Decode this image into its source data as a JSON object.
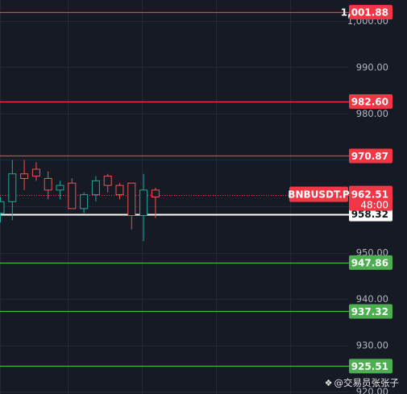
{
  "chart_data": {
    "type": "candlestick",
    "symbol": "BNBUSDT.P",
    "last_price": "962.51",
    "countdown": "48:00",
    "y_ticks": [
      "1,000.00",
      "990.00",
      "980.00",
      "970.00",
      "960.00",
      "950.00",
      "940.00",
      "930.00",
      "920.00"
    ],
    "ylim": [
      919.5,
      1004.5
    ],
    "candles": [
      {
        "o": 958.5,
        "h": 962.0,
        "l": 956.5,
        "c": 961.0
      },
      {
        "o": 961.0,
        "h": 970.0,
        "l": 957.0,
        "c": 967.0
      },
      {
        "o": 967.0,
        "h": 970.0,
        "l": 963.5,
        "c": 966.0
      },
      {
        "o": 968.0,
        "h": 969.5,
        "l": 965.5,
        "c": 966.5
      },
      {
        "o": 966.0,
        "h": 967.5,
        "l": 961.5,
        "c": 963.5
      },
      {
        "o": 963.5,
        "h": 965.5,
        "l": 961.5,
        "c": 964.5
      },
      {
        "o": 965.0,
        "h": 966.0,
        "l": 959.5,
        "c": 959.5
      },
      {
        "o": 959.5,
        "h": 963.0,
        "l": 958.5,
        "c": 962.5
      },
      {
        "o": 962.5,
        "h": 966.5,
        "l": 961.0,
        "c": 965.5
      },
      {
        "o": 966.5,
        "h": 967.0,
        "l": 963.0,
        "c": 964.5
      },
      {
        "o": 964.5,
        "h": 965.0,
        "l": 961.5,
        "c": 962.5
      },
      {
        "o": 965.0,
        "h": 965.0,
        "l": 955.0,
        "c": 958.0
      },
      {
        "o": 958.0,
        "h": 967.0,
        "l": 952.5,
        "c": 963.5
      },
      {
        "o": 963.5,
        "h": 964.0,
        "l": 957.5,
        "c": 962.0
      }
    ],
    "levels": [
      {
        "value": 1001.88,
        "label": "1,001.88",
        "color": "#f23645",
        "kind": "resistance"
      },
      {
        "value": 982.6,
        "label": "982.60",
        "color": "#f23645",
        "kind": "resistance"
      },
      {
        "value": 970.87,
        "label": "970.87",
        "color": "#f23645",
        "kind": "resistance"
      },
      {
        "value": 958.32,
        "label": "958.32",
        "color": "#ffffff",
        "kind": "pivot"
      },
      {
        "value": 947.86,
        "label": "947.86",
        "color": "#4caf50",
        "kind": "support"
      },
      {
        "value": 937.32,
        "label": "937.32",
        "color": "#4caf50",
        "kind": "support"
      },
      {
        "value": 925.51,
        "label": "925.51",
        "color": "#4caf50",
        "kind": "support"
      }
    ],
    "colors": {
      "background": "#161a25",
      "up": "#26a69a",
      "down": "#ef5350",
      "grid": "#242936",
      "axis_text": "#b2b5be",
      "last_price_tag": "#f23645"
    }
  },
  "watermark": {
    "icon": "diamond-logo-icon",
    "text": "@交易员张张子"
  }
}
